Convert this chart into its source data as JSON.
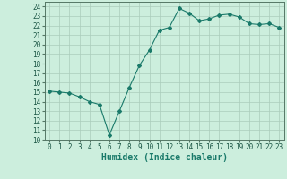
{
  "x": [
    0,
    1,
    2,
    3,
    4,
    5,
    6,
    7,
    8,
    9,
    10,
    11,
    12,
    13,
    14,
    15,
    16,
    17,
    18,
    19,
    20,
    21,
    22,
    23
  ],
  "y": [
    15.1,
    15.0,
    14.9,
    14.5,
    14.0,
    13.7,
    10.5,
    13.0,
    15.5,
    17.8,
    19.4,
    21.5,
    21.8,
    23.8,
    23.3,
    22.5,
    22.7,
    23.1,
    23.2,
    22.9,
    22.2,
    22.1,
    22.2,
    21.8
  ],
  "line_color": "#1a7a6a",
  "marker": "D",
  "marker_size": 2,
  "bg_color": "#cceedd",
  "grid_color": "#aaccbb",
  "xlabel": "Humidex (Indice chaleur)",
  "ylim": [
    10,
    24.5
  ],
  "yticks": [
    10,
    11,
    12,
    13,
    14,
    15,
    16,
    17,
    18,
    19,
    20,
    21,
    22,
    23,
    24
  ],
  "xticks": [
    0,
    1,
    2,
    3,
    4,
    5,
    6,
    7,
    8,
    9,
    10,
    11,
    12,
    13,
    14,
    15,
    16,
    17,
    18,
    19,
    20,
    21,
    22,
    23
  ],
  "tick_fontsize": 5.5,
  "label_fontsize": 7
}
